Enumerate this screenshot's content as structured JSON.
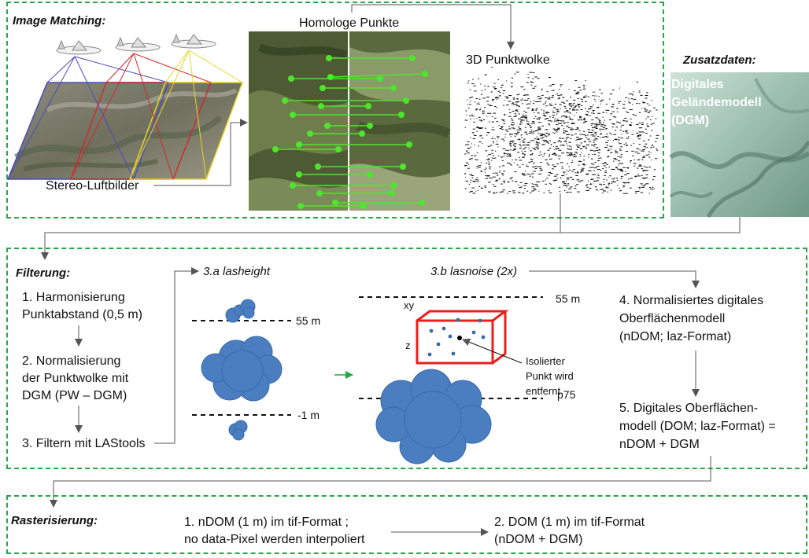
{
  "image_matching": {
    "title": "Image Matching:",
    "stereo_label": "Stereo-Luftbilder",
    "homologe_label": "Homologe Punkte",
    "punktwolke_label": "3D Punktwolke"
  },
  "zusatzdaten": {
    "title": "Zusatzdaten:",
    "dgm_line1": "Digitales",
    "dgm_line2": "Geländemodell",
    "dgm_line3": "(DGM)"
  },
  "filterung": {
    "title": "Filterung:",
    "steps": [
      {
        "line1": "1. Harmonisierung",
        "line2": "Punktabstand (0,5 m)"
      },
      {
        "line1": "2. Normalisierung",
        "line2": "der Punktwolke mit",
        "line3": "DGM (PW – DGM)"
      },
      {
        "line1": "3. Filtern mit LAStools"
      }
    ],
    "lasheight": {
      "title": "3.a lasheight",
      "upper_label": "55 m",
      "lower_label": "-1 m"
    },
    "lasnoise": {
      "title": "3.b lasnoise (2x)",
      "upper_label": "55 m",
      "lower_label": "p75",
      "xy_label": "xy",
      "z_label": "z",
      "note_line1": "Isolierter",
      "note_line2": "Punkt wird",
      "note_line3": "entfernt"
    },
    "result4": {
      "line1": "4. Normalisiertes digitales",
      "line2": "Oberflächenmodell",
      "line3": "(nDOM; laz-Format)"
    },
    "result5": {
      "line1": "5. Digitales Oberflächen-",
      "line2": "modell (DOM; laz-Format) =",
      "line3": "nDOM + DGM"
    }
  },
  "rasterisierung": {
    "title": "Rasterisierung:",
    "step1_line1": "1. nDOM (1 m) im tif-Format ;",
    "step1_line2": "no data-Pixel werden interpoliert",
    "step2_line1": "2. DOM (1 m) im tif-Format",
    "step2_line2": "(nDOM + DGM)"
  },
  "colors": {
    "panel_border": "#22a845",
    "match_point": "#4ee52e",
    "cloud_fill": "#4a7ec0",
    "noise_box": "#e8201c",
    "arrow_green": "#22a845"
  }
}
